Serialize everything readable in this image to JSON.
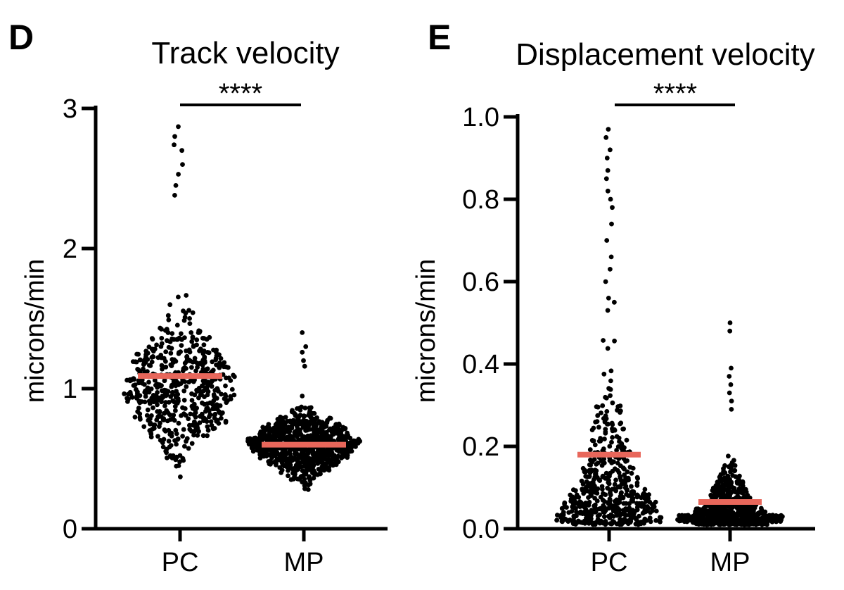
{
  "chart_data": [
    {
      "type": "scatter",
      "panel": "D",
      "title": "Track velocity",
      "xlabel": "",
      "ylabel": "microns/min",
      "ylim": [
        0,
        3
      ],
      "yticks": [
        "0",
        "1",
        "2",
        "3"
      ],
      "categories": [
        "PC",
        "MP"
      ],
      "significance": "****",
      "grid": false,
      "mean_color": "#e8675b",
      "point_color": "#000000",
      "groups": [
        {
          "category": "PC",
          "mean": 1.09,
          "min": 0.34,
          "max": 2.87,
          "center": 1.0,
          "spread": 0.24,
          "count": 550,
          "outliers": [
            2.87,
            2.8,
            2.74,
            2.7,
            2.6,
            2.53,
            2.45,
            2.38
          ]
        },
        {
          "category": "MP",
          "mean": 0.6,
          "min": 0.18,
          "max": 1.4,
          "center": 0.6,
          "spread": 0.11,
          "count": 900,
          "outliers": [
            1.4,
            1.3,
            1.26,
            1.2,
            1.16
          ]
        }
      ]
    },
    {
      "type": "scatter",
      "panel": "E",
      "title": "Displacement velocity",
      "xlabel": "",
      "ylabel": "microns/min",
      "ylim": [
        0,
        1.0
      ],
      "yticks": [
        "0.0",
        "0.2",
        "0.4",
        "0.6",
        "0.8",
        "1.0"
      ],
      "categories": [
        "PC",
        "MP"
      ],
      "significance": "****",
      "grid": false,
      "mean_color": "#e8675b",
      "point_color": "#000000",
      "groups": [
        {
          "category": "PC",
          "mean": 0.18,
          "min": 0.01,
          "max": 0.97,
          "center": 0.1,
          "spread": 0.12,
          "count": 520,
          "outliers": [
            0.97,
            0.95,
            0.92,
            0.9,
            0.87,
            0.85,
            0.82,
            0.8,
            0.78,
            0.74,
            0.7,
            0.66,
            0.63,
            0.6,
            0.56,
            0.55,
            0.53
          ]
        },
        {
          "category": "MP",
          "mean": 0.065,
          "min": 0.01,
          "max": 0.5,
          "center": 0.05,
          "spread": 0.045,
          "count": 800,
          "outliers": [
            0.5,
            0.48,
            0.39,
            0.37,
            0.35,
            0.33,
            0.31,
            0.29
          ]
        }
      ]
    }
  ]
}
